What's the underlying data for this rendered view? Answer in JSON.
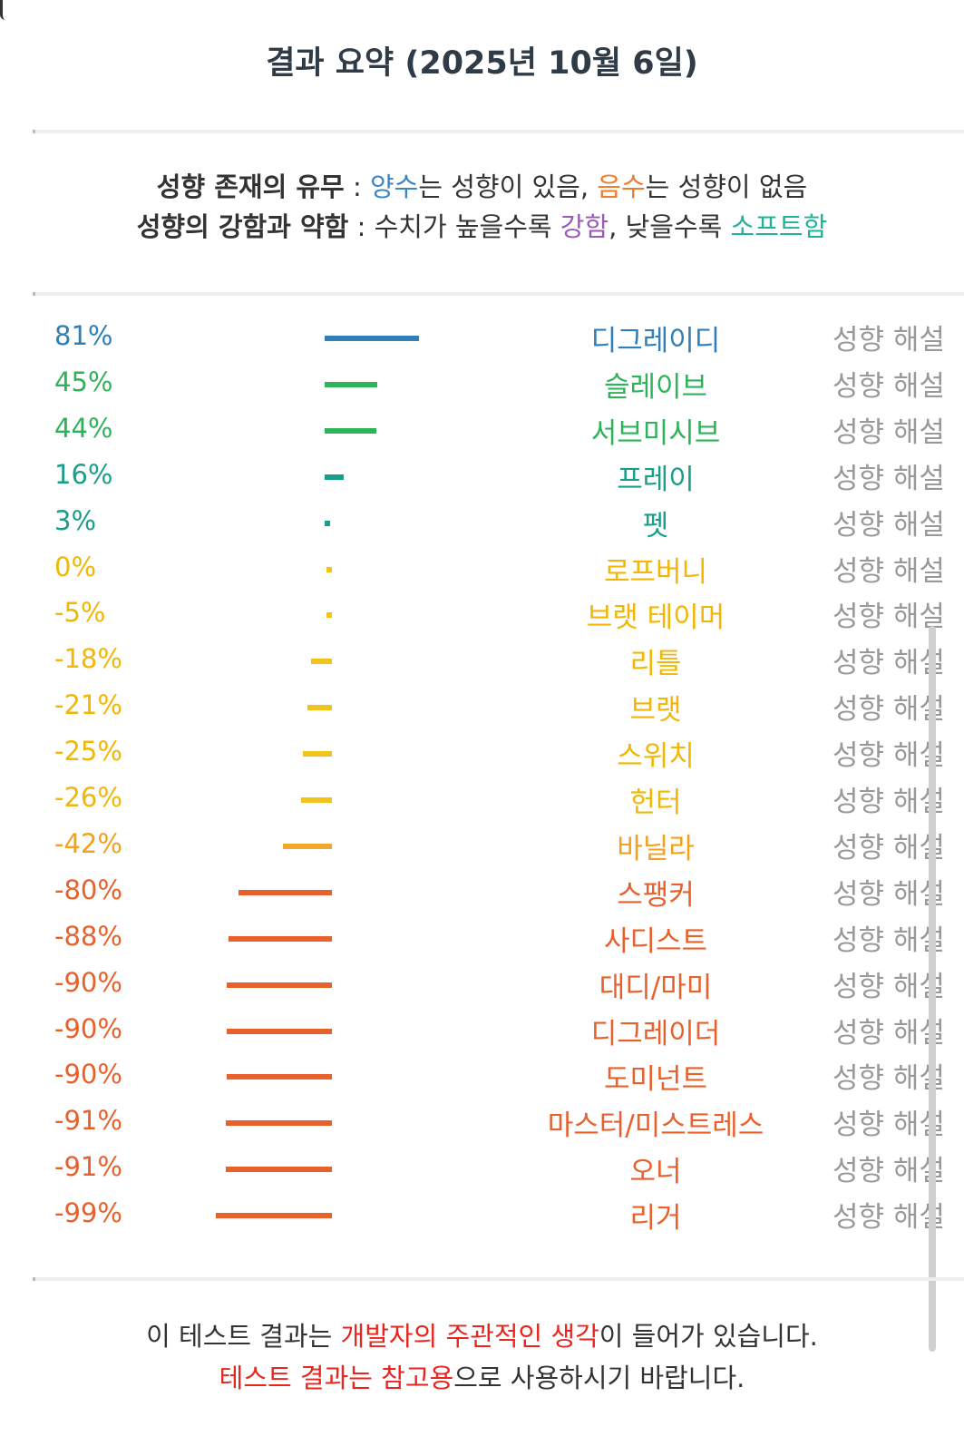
{
  "header": {
    "title": "결과 요약 (2025년 10월 6일)"
  },
  "legend": {
    "line1": {
      "bold": "성향 존재의 유무",
      "sep": " : ",
      "pos_word": "양수",
      "mid1": "는 성향이 있음, ",
      "neg_word": "음수",
      "mid2": "는 성향이 없음"
    },
    "line2": {
      "bold": "성향의 강함과 약함",
      "sep": " : ",
      "mid1": "수치가 높을수록 ",
      "strong_word": "강함",
      "mid2": ", 낮을수록 ",
      "soft_word": "소프트함"
    },
    "colors": {
      "positive": "#3a86c8",
      "negative": "#ef7d2a",
      "strong": "#9b59b6",
      "soft": "#1db49a"
    }
  },
  "chart_data": {
    "type": "bar",
    "orientation": "horizontal",
    "value_unit": "%",
    "xlim": [
      -100,
      100
    ],
    "categories": [
      "디그레이디",
      "슬레이브",
      "서브미시브",
      "프레이",
      "펫",
      "로프버니",
      "브랫 테이머",
      "리틀",
      "브랫",
      "스위치",
      "헌터",
      "바닐라",
      "스팽커",
      "사디스트",
      "대디/마미",
      "디그레이더",
      "도미넌트",
      "마스터/미스트레스",
      "오너",
      "리거"
    ],
    "values": [
      81,
      45,
      44,
      16,
      3,
      0,
      -5,
      -18,
      -21,
      -25,
      -26,
      -42,
      -80,
      -88,
      -90,
      -90,
      -90,
      -91,
      -91,
      -99
    ],
    "labels": [
      "81%",
      "45%",
      "44%",
      "16%",
      "3%",
      "0%",
      "-5%",
      "-18%",
      "-21%",
      "-25%",
      "-26%",
      "-42%",
      "-80%",
      "-88%",
      "-90%",
      "-90%",
      "-90%",
      "-91%",
      "-91%",
      "-99%"
    ],
    "colors": [
      "#2f7fb8",
      "#2fb35a",
      "#2fb35a",
      "#1a9e8a",
      "#1a9e8a",
      "#f2c318",
      "#f2c318",
      "#f2c318",
      "#f2c318",
      "#f2c318",
      "#f2c318",
      "#f0a92a",
      "#e8612c",
      "#e8612c",
      "#e8612c",
      "#e8612c",
      "#e8612c",
      "#e8612c",
      "#e8612c",
      "#e8612c"
    ],
    "name_colors": [
      "#2f7fb8",
      "#2fb35a",
      "#2fb35a",
      "#1a9e8a",
      "#1a9e8a",
      "#f2b705",
      "#f2b705",
      "#f2b705",
      "#f2b705",
      "#f2b705",
      "#f2b705",
      "#f2a21e",
      "#e8612c",
      "#e8612c",
      "#e8612c",
      "#e8612c",
      "#e8612c",
      "#e8612c",
      "#e8612c",
      "#e8612c"
    ],
    "pct_colors": [
      "#2f7fb8",
      "#2fb35a",
      "#2fb35a",
      "#1a9e8a",
      "#1a9e8a",
      "#f2b705",
      "#f2b705",
      "#f2b705",
      "#f2b705",
      "#f2b705",
      "#f2b705",
      "#f2a21e",
      "#e8612c",
      "#e8612c",
      "#e8612c",
      "#e8612c",
      "#e8612c",
      "#e8612c",
      "#e8612c",
      "#e8612c"
    ],
    "link_label": "성향 해설"
  },
  "footer": {
    "line1": {
      "a": "이 테스트 결과는 ",
      "red": "개발자의 주관적인 생각",
      "b": "이 들어가 있습니다."
    },
    "line2": {
      "red": "테스트 결과는 참고용",
      "b": "으로 사용하시기 바랍니다."
    }
  }
}
